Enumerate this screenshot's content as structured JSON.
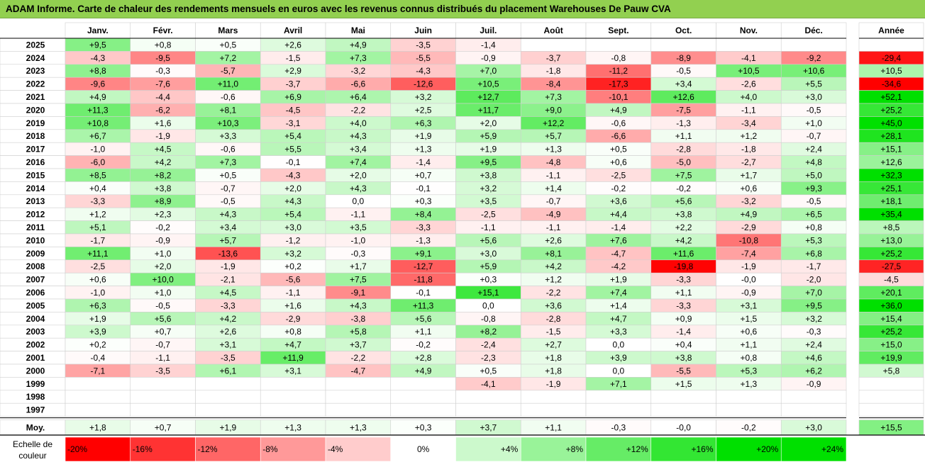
{
  "title": "ADAM Informe. Carte de chaleur des rendements mensuels en euros avec les revenus connus distribués du placement Warehouses De Pauw CVA",
  "chart_data": {
    "type": "heatmap",
    "title": "ADAM Informe. Carte de chaleur des rendements mensuels en euros avec les revenus connus distribués du placement Warehouses De Pauw CVA",
    "columns": [
      "Janv.",
      "Févr.",
      "Mars",
      "Avril",
      "Mai",
      "Juin",
      "Juil.",
      "Août",
      "Sept.",
      "Oct.",
      "Nov.",
      "Déc."
    ],
    "year_column_label": "Année",
    "avg_row_label": "Moy.",
    "rows": [
      {
        "year": "2025",
        "values": [
          "+9,5",
          "+0,8",
          "+0,5",
          "+2,6",
          "+4,9",
          "-3,5",
          "-1,4",
          "",
          "",
          "",
          "",
          ""
        ],
        "annual": ""
      },
      {
        "year": "2024",
        "values": [
          "-4,3",
          "-9,5",
          "+7,2",
          "-1,5",
          "+7,3",
          "-5,5",
          "-0,9",
          "-3,7",
          "-0,8",
          "-8,9",
          "-4,1",
          "-9,2"
        ],
        "annual": "-29,4"
      },
      {
        "year": "2023",
        "values": [
          "+8,8",
          "-0,3",
          "-5,7",
          "+2,9",
          "-3,2",
          "-4,3",
          "+7,0",
          "-1,8",
          "-11,2",
          "-0,5",
          "+10,5",
          "+10,6"
        ],
        "annual": "+10,5"
      },
      {
        "year": "2022",
        "values": [
          "-9,6",
          "-7,6",
          "+11,0",
          "-3,7",
          "-6,6",
          "-12,6",
          "+10,5",
          "-8,4",
          "-17,3",
          "+3,4",
          "-2,6",
          "+5,5"
        ],
        "annual": "-34,6"
      },
      {
        "year": "2021",
        "values": [
          "+4,9",
          "-4,4",
          "-0,6",
          "+6,9",
          "+6,4",
          "+3,2",
          "+12,7",
          "+7,3",
          "-10,1",
          "+12,6",
          "+4,0",
          "+3,0"
        ],
        "annual": "+52,1"
      },
      {
        "year": "2020",
        "values": [
          "+11,3",
          "-6,2",
          "+8,1",
          "-4,5",
          "-2,2",
          "+2,5",
          "+11,7",
          "+9,0",
          "+4,9",
          "-7,5",
          "-1,1",
          "-0,5"
        ],
        "annual": "+25,2"
      },
      {
        "year": "2019",
        "values": [
          "+10,8",
          "+1,6",
          "+10,3",
          "-3,1",
          "+4,0",
          "+6,3",
          "+2,0",
          "+12,2",
          "-0,6",
          "-1,3",
          "-3,4",
          "+1,0"
        ],
        "annual": "+45,0"
      },
      {
        "year": "2018",
        "values": [
          "+6,7",
          "-1,9",
          "+3,3",
          "+5,4",
          "+4,3",
          "+1,9",
          "+5,9",
          "+5,7",
          "-6,6",
          "+1,1",
          "+1,2",
          "-0,7"
        ],
        "annual": "+28,1"
      },
      {
        "year": "2017",
        "values": [
          "-1,0",
          "+4,5",
          "-0,6",
          "+5,5",
          "+3,4",
          "+1,3",
          "+1,9",
          "+1,3",
          "+0,5",
          "-2,8",
          "-1,8",
          "+2,4"
        ],
        "annual": "+15,1"
      },
      {
        "year": "2016",
        "values": [
          "-6,0",
          "+4,2",
          "+7,3",
          "-0,1",
          "+7,4",
          "-1,4",
          "+9,5",
          "-4,8",
          "+0,6",
          "-5,0",
          "-2,7",
          "+4,8"
        ],
        "annual": "+12,6"
      },
      {
        "year": "2015",
        "values": [
          "+8,5",
          "+8,2",
          "+0,5",
          "-4,3",
          "+2,0",
          "+0,7",
          "+3,8",
          "-1,1",
          "-2,5",
          "+7,5",
          "+1,7",
          "+5,0"
        ],
        "annual": "+32,3"
      },
      {
        "year": "2014",
        "values": [
          "+0,4",
          "+3,8",
          "-0,7",
          "+2,0",
          "+4,3",
          "-0,1",
          "+3,2",
          "+1,4",
          "-0,2",
          "-0,2",
          "+0,6",
          "+9,3"
        ],
        "annual": "+25,1"
      },
      {
        "year": "2013",
        "values": [
          "-3,3",
          "+8,9",
          "-0,5",
          "+4,3",
          "0,0",
          "+0,3",
          "+3,5",
          "-0,7",
          "+3,6",
          "+5,6",
          "-3,2",
          "-0,5"
        ],
        "annual": "+18,1"
      },
      {
        "year": "2012",
        "values": [
          "+1,2",
          "+2,3",
          "+4,3",
          "+5,4",
          "-1,1",
          "+8,4",
          "-2,5",
          "-4,9",
          "+4,4",
          "+3,8",
          "+4,9",
          "+6,5"
        ],
        "annual": "+35,4"
      },
      {
        "year": "2011",
        "values": [
          "+5,1",
          "-0,2",
          "+3,4",
          "+3,0",
          "+3,5",
          "-3,3",
          "-1,1",
          "-1,1",
          "-1,4",
          "+2,2",
          "-2,9",
          "+0,8"
        ],
        "annual": "+8,5"
      },
      {
        "year": "2010",
        "values": [
          "-1,7",
          "-0,9",
          "+5,7",
          "-1,2",
          "-1,0",
          "-1,3",
          "+5,6",
          "+2,6",
          "+7,6",
          "+4,2",
          "-10,8",
          "+5,3"
        ],
        "annual": "+13,0"
      },
      {
        "year": "2009",
        "values": [
          "+11,1",
          "+1,0",
          "-13,6",
          "+3,2",
          "-0,3",
          "+9,1",
          "+3,0",
          "+8,1",
          "-4,7",
          "+11,6",
          "-7,4",
          "+6,8"
        ],
        "annual": "+25,2"
      },
      {
        "year": "2008",
        "values": [
          "-2,5",
          "+2,0",
          "-1,9",
          "+0,2",
          "+1,7",
          "-12,7",
          "+5,9",
          "+4,2",
          "-4,2",
          "-19,8",
          "-1,9",
          "-1,7"
        ],
        "annual": "-27,5"
      },
      {
        "year": "2007",
        "values": [
          "+0,6",
          "+10,0",
          "-2,1",
          "-5,6",
          "+7,5",
          "-11,8",
          "+0,3",
          "+1,2",
          "+1,9",
          "-3,3",
          "-0,0",
          "-2,0"
        ],
        "annual": "-4,5"
      },
      {
        "year": "2006",
        "values": [
          "-1,0",
          "+1,0",
          "+4,5",
          "-1,1",
          "-9,1",
          "-0,1",
          "+15,1",
          "-2,2",
          "+7,4",
          "+1,1",
          "-0,9",
          "+7,0"
        ],
        "annual": "+20,1"
      },
      {
        "year": "2005",
        "values": [
          "+6,3",
          "-0,5",
          "-3,3",
          "+1,6",
          "+4,3",
          "+11,3",
          "0,0",
          "+3,6",
          "+1,4",
          "-3,3",
          "+3,1",
          "+9,5"
        ],
        "annual": "+36,0"
      },
      {
        "year": "2004",
        "values": [
          "+1,9",
          "+5,6",
          "+4,2",
          "-2,9",
          "-3,8",
          "+5,6",
          "-0,8",
          "-2,8",
          "+4,7",
          "+0,9",
          "+1,5",
          "+3,2"
        ],
        "annual": "+15,4"
      },
      {
        "year": "2003",
        "values": [
          "+3,9",
          "+0,7",
          "+2,6",
          "+0,8",
          "+5,8",
          "+1,1",
          "+8,2",
          "-1,5",
          "+3,3",
          "-1,4",
          "+0,6",
          "-0,3"
        ],
        "annual": "+25,2"
      },
      {
        "year": "2002",
        "values": [
          "+0,2",
          "-0,7",
          "+3,1",
          "+4,7",
          "+3,7",
          "-0,2",
          "-2,4",
          "+2,7",
          "0,0",
          "+0,4",
          "+1,1",
          "+2,4"
        ],
        "annual": "+15,0"
      },
      {
        "year": "2001",
        "values": [
          "-0,4",
          "-1,1",
          "-3,5",
          "+11,9",
          "-2,2",
          "+2,8",
          "-2,3",
          "+1,8",
          "+3,9",
          "+3,8",
          "+0,8",
          "+4,6"
        ],
        "annual": "+19,9"
      },
      {
        "year": "2000",
        "values": [
          "-7,1",
          "-3,5",
          "+6,1",
          "+3,1",
          "-4,7",
          "+4,9",
          "+0,5",
          "+1,8",
          "0,0",
          "-5,5",
          "+5,3",
          "+6,2"
        ],
        "annual": "+5,8"
      },
      {
        "year": "1999",
        "values": [
          "",
          "",
          "",
          "",
          "",
          "",
          "-4,1",
          "-1,9",
          "+7,1",
          "+1,5",
          "+1,3",
          "-0,9"
        ],
        "annual": ""
      },
      {
        "year": "1998",
        "values": [
          "",
          "",
          "",
          "",
          "",
          "",
          "",
          "",
          "",
          "",
          "",
          ""
        ],
        "annual": ""
      },
      {
        "year": "1997",
        "values": [
          "",
          "",
          "",
          "",
          "",
          "",
          "",
          "",
          "",
          "",
          "",
          ""
        ],
        "annual": ""
      }
    ],
    "averages": {
      "values": [
        "+1,8",
        "+0,7",
        "+1,9",
        "+1,3",
        "+1,3",
        "+0,3",
        "+3,7",
        "+1,1",
        "-0,3",
        "-0,0",
        "-0,2",
        "+3,0"
      ],
      "annual": "+15,5"
    },
    "scale": {
      "label_line1": "Echelle de",
      "label_line2": "couleur",
      "entries": [
        {
          "label": "-20%",
          "value": -20
        },
        {
          "label": "-16%",
          "value": -16
        },
        {
          "label": "-12%",
          "value": -12
        },
        {
          "label": "-8%",
          "value": -8
        },
        {
          "label": "-4%",
          "value": -4
        },
        {
          "label": "0%",
          "value": 0
        },
        {
          "label": "+4%",
          "value": 4
        },
        {
          "label": "+8%",
          "value": 8
        },
        {
          "label": "+12%",
          "value": 12
        },
        {
          "label": "+16%",
          "value": 16
        },
        {
          "label": "+20%",
          "value": 20
        },
        {
          "label": "+24%",
          "value": 24
        }
      ]
    },
    "colors": {
      "negative": "#ff0000",
      "neutral": "#ffffff",
      "positive": "#00e000",
      "title_bar": "#92d050"
    }
  }
}
